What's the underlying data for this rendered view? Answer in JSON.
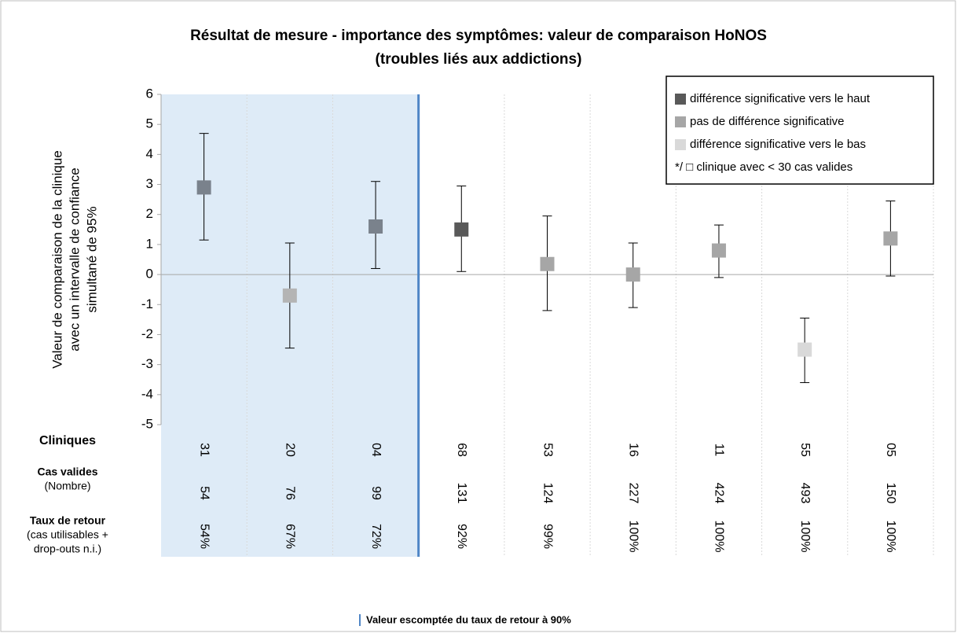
{
  "chart_data": {
    "type": "errorbar",
    "title": [
      "Résultat de mesure - importance des symptômes: valeur de comparaison HoNOS",
      "(troubles liés aux addictions)"
    ],
    "y_label": [
      "Valeur de comparaison de la clinique",
      "avec un intervalle de confiance",
      "simultané de 95%"
    ],
    "categories": [
      "31",
      "20",
      "04",
      "68",
      "53",
      "16",
      "11",
      "55",
      "05"
    ],
    "values": [
      2.9,
      -0.7,
      1.6,
      1.5,
      0.35,
      0,
      0.8,
      -2.5,
      1.2
    ],
    "lower": [
      1.15,
      -2.45,
      0.2,
      0.1,
      -1.2,
      -1.1,
      -0.1,
      -3.6,
      -0.05
    ],
    "upper": [
      4.7,
      1.05,
      3.1,
      2.95,
      1.95,
      1.05,
      1.65,
      -1.45,
      2.45
    ],
    "colors": [
      "#7a828c",
      "#b4b4b4",
      "#7a828c",
      "#595959",
      "#a6a6a6",
      "#a6a6a6",
      "#a6a6a6",
      "#d9d9d9",
      "#a6a6a6"
    ],
    "ylim": [
      -5,
      6
    ],
    "yticks": [
      -5,
      -4,
      -3,
      -2,
      -1,
      0,
      1,
      2,
      3,
      4,
      5,
      6
    ],
    "legend": [
      {
        "name": "différence significative vers le haut",
        "color": "#595959"
      },
      {
        "name": "pas de différence significative",
        "color": "#a6a6a6"
      },
      {
        "name": "différence significative vers le bas",
        "color": "#d9d9d9"
      }
    ],
    "legend_note": "*/ □ clinique avec < 30 cas valides",
    "row_labels": {
      "clinics": "Cliniques",
      "cases": [
        "Cas valides",
        "(Nombre)"
      ],
      "rate": [
        "Taux de retour",
        "(cas utilisables +",
        "drop-outs n.i.)"
      ]
    },
    "cases": [
      54,
      76,
      99,
      131,
      124,
      227,
      424,
      493,
      150
    ],
    "rates": [
      54,
      67,
      72,
      92,
      99,
      100,
      100,
      100,
      100
    ],
    "rate_labels": [
      "54%",
      "67%",
      "72%",
      "92%",
      "99%",
      "100%",
      "100%",
      "100%",
      "100%"
    ],
    "threshold": 90,
    "threshold_note": "Valeur escomptée du taux de retour à 90%",
    "threshold_color": "#4f86c6",
    "highlight_color": "#deebf7"
  }
}
